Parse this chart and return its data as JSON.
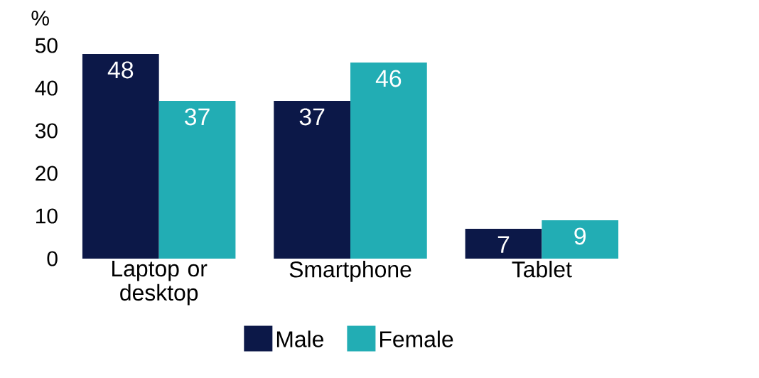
{
  "chart_data": {
    "type": "bar",
    "ylabel": "%",
    "categories": [
      "Laptop or desktop",
      "Smartphone",
      "Tablet"
    ],
    "series": [
      {
        "name": "Male",
        "color": "#0c1848",
        "values": [
          48,
          37,
          7
        ]
      },
      {
        "name": "Female",
        "color": "#22adb4",
        "values": [
          37,
          46,
          9
        ]
      }
    ],
    "ylim": [
      0,
      50
    ],
    "yticks": [
      0,
      10,
      20,
      30,
      40,
      50
    ],
    "data_labels": true,
    "legend": "bottom",
    "grid": false
  }
}
